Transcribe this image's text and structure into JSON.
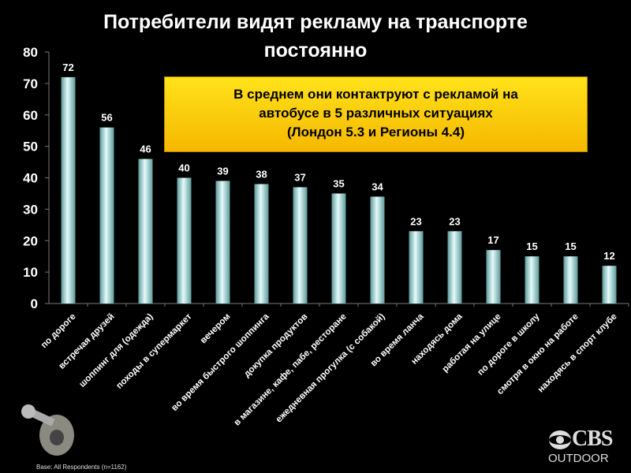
{
  "title": [
    "Потребители видят рекламу на транспорте",
    "постоянно"
  ],
  "callout": [
    "В среднем они контактруют с рекламой на",
    "автобусе в 5 различных ситуациях",
    "(Лондон 5.3 и Регионы 4.4)"
  ],
  "footnote": "Base: All Respondents (n=1162)",
  "logo": {
    "top": "CBS",
    "bottom": "OUTDOOR"
  },
  "colors": {
    "bar": "#a8d8d8",
    "callout": "#ffd400"
  },
  "chart_data": {
    "type": "bar",
    "title": "Потребители видят рекламу на транспорте постоянно",
    "categories": [
      "по дороге",
      "встречая друзей",
      "шоппинг для (одежда)",
      "походы в супермаркет",
      "вечером",
      "во время быстрого шоппинга",
      "докупка продуктов",
      "в магазине, кафе, пабе, ресторане",
      "ежедневная прогулка (с собакой)",
      "во время ланча",
      "находясь дома",
      "работая на улице",
      "по дороге в школу",
      "смотря в окно на работе",
      "находясь в спорт клубе"
    ],
    "values": [
      72,
      56,
      46,
      40,
      39,
      38,
      37,
      35,
      34,
      23,
      23,
      17,
      15,
      15,
      12
    ],
    "ylim": [
      0,
      80
    ],
    "yticks": [
      0,
      10,
      20,
      30,
      40,
      50,
      60,
      70,
      80
    ],
    "xlabel": "",
    "ylabel": "",
    "grid": false
  }
}
